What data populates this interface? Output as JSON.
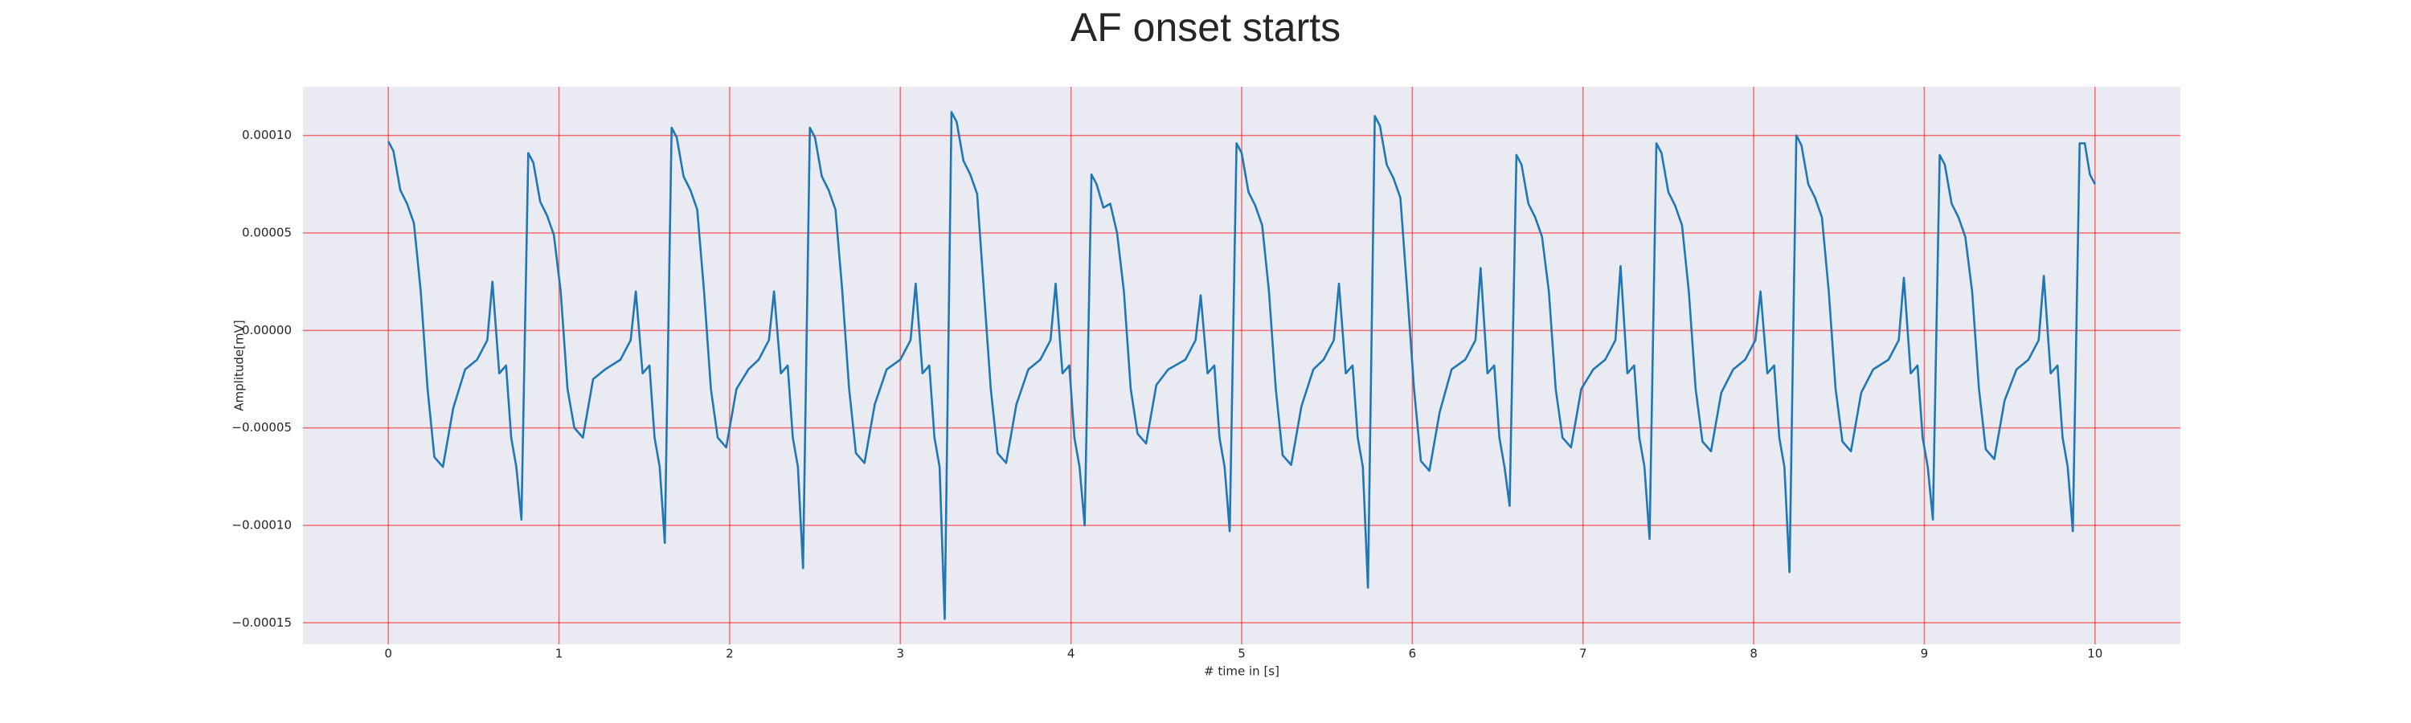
{
  "chart_data": {
    "type": "line",
    "title": "AF onset starts",
    "xlabel": "# time in [s]",
    "ylabel": "Amplitude[mV]",
    "color": "#1f77b4",
    "grid": true,
    "grid_color": "#ff0000",
    "background": "#eaeaf2",
    "xlim": [
      -0.5,
      10.5
    ],
    "xticks": [
      0,
      1,
      2,
      3,
      4,
      5,
      6,
      7,
      8,
      9,
      10
    ],
    "ylim": [
      -0.000161,
      0.000125
    ],
    "yticks": [
      {
        "value": -0.00015,
        "label": "−0.00015"
      },
      {
        "value": -0.0001,
        "label": "−0.00010"
      },
      {
        "value": -5e-05,
        "label": "−0.00005"
      },
      {
        "value": 0,
        "label": "0.00000"
      },
      {
        "value": 5e-05,
        "label": "0.00005"
      },
      {
        "value": 0.0001,
        "label": "0.00010"
      }
    ],
    "x": [
      0,
      0.03,
      0.07,
      0.11,
      0.15,
      0.19,
      0.23,
      0.27,
      0.32,
      0.38,
      0.45,
      0.52,
      0.58,
      0.61,
      0.65,
      0.69,
      0.72,
      0.75,
      0.78,
      0.82,
      0.85,
      0.89,
      0.93,
      0.97,
      1.01,
      1.05,
      1.09,
      1.14,
      1.2,
      1.27,
      1.36,
      1.42,
      1.45,
      1.49,
      1.53,
      1.56,
      1.59,
      1.62,
      1.66,
      1.69,
      1.73,
      1.77,
      1.81,
      1.85,
      1.89,
      1.93,
      1.98,
      2.04,
      2.11,
      2.17,
      2.23,
      2.26,
      2.3,
      2.34,
      2.37,
      2.4,
      2.43,
      2.47,
      2.5,
      2.54,
      2.58,
      2.62,
      2.66,
      2.7,
      2.74,
      2.79,
      2.85,
      2.92,
      3,
      3.06,
      3.09,
      3.13,
      3.17,
      3.2,
      3.23,
      3.26,
      3.3,
      3.33,
      3.37,
      3.41,
      3.45,
      3.49,
      3.53,
      3.57,
      3.62,
      3.68,
      3.75,
      3.82,
      3.88,
      3.91,
      3.95,
      3.99,
      4.02,
      4.05,
      4.08,
      4.12,
      4.15,
      4.19,
      4.23,
      4.27,
      4.31,
      4.35,
      4.39,
      4.44,
      4.5,
      4.57,
      4.67,
      4.73,
      4.76,
      4.8,
      4.84,
      4.87,
      4.9,
      4.93,
      4.97,
      5,
      5.04,
      5.08,
      5.12,
      5.16,
      5.2,
      5.24,
      5.29,
      5.35,
      5.42,
      5.48,
      5.54,
      5.57,
      5.61,
      5.65,
      5.68,
      5.71,
      5.74,
      5.78,
      5.81,
      5.85,
      5.89,
      5.93,
      5.97,
      6.01,
      6.05,
      6.1,
      6.16,
      6.23,
      6.31,
      6.37,
      6.4,
      6.44,
      6.48,
      6.51,
      6.54,
      6.57,
      6.61,
      6.64,
      6.68,
      6.72,
      6.76,
      6.8,
      6.84,
      6.88,
      6.93,
      6.99,
      7.06,
      7.13,
      7.19,
      7.22,
      7.26,
      7.3,
      7.33,
      7.36,
      7.39,
      7.43,
      7.46,
      7.5,
      7.54,
      7.58,
      7.62,
      7.66,
      7.7,
      7.75,
      7.81,
      7.88,
      7.95,
      8.01,
      8.04,
      8.08,
      8.12,
      8.15,
      8.18,
      8.21,
      8.25,
      8.28,
      8.32,
      8.36,
      8.4,
      8.44,
      8.48,
      8.52,
      8.57,
      8.63,
      8.7,
      8.79,
      8.85,
      8.88,
      8.92,
      8.96,
      8.99,
      9.02,
      9.05,
      9.09,
      9.12,
      9.16,
      9.2,
      9.24,
      9.28,
      9.32,
      9.36,
      9.41,
      9.47,
      9.54,
      9.61,
      9.67,
      9.7,
      9.74,
      9.78,
      9.81,
      9.84,
      9.87,
      9.91,
      9.94,
      9.97,
      10
    ],
    "values": [
      9.7e-05,
      9.2e-05,
      7.2e-05,
      6.5e-05,
      5.5e-05,
      2e-05,
      -3e-05,
      -6.5e-05,
      -7e-05,
      -4e-05,
      -2e-05,
      -1.5e-05,
      -5e-06,
      2.5e-05,
      -2.2e-05,
      -1.8e-05,
      -5.5e-05,
      -7e-05,
      -9.7e-05,
      9.1e-05,
      8.6e-05,
      6.6e-05,
      5.9e-05,
      4.9e-05,
      2e-05,
      -3e-05,
      -5e-05,
      -5.5e-05,
      -2.5e-05,
      -2e-05,
      -1.5e-05,
      -5e-06,
      2e-05,
      -2.2e-05,
      -1.8e-05,
      -5.5e-05,
      -7e-05,
      -0.000109,
      0.000104,
      9.9e-05,
      7.9e-05,
      7.2e-05,
      6.2e-05,
      2e-05,
      -3e-05,
      -5.5e-05,
      -6e-05,
      -3e-05,
      -2e-05,
      -1.5e-05,
      -5e-06,
      2e-05,
      -2.2e-05,
      -1.8e-05,
      -5.5e-05,
      -7e-05,
      -0.000122,
      0.000104,
      9.9e-05,
      7.9e-05,
      7.2e-05,
      6.2e-05,
      2e-05,
      -3e-05,
      -6.3e-05,
      -6.8e-05,
      -3.8e-05,
      -2e-05,
      -1.5e-05,
      -5e-06,
      2.4e-05,
      -2.2e-05,
      -1.8e-05,
      -5.5e-05,
      -7e-05,
      -0.000148,
      0.000112,
      0.000107,
      8.7e-05,
      8e-05,
      7e-05,
      2e-05,
      -3e-05,
      -6.3e-05,
      -6.8e-05,
      -3.8e-05,
      -2e-05,
      -1.5e-05,
      -5e-06,
      2.4e-05,
      -2.2e-05,
      -1.8e-05,
      -5.5e-05,
      -7e-05,
      -0.0001,
      8e-05,
      7.5e-05,
      6.3e-05,
      6.5e-05,
      5e-05,
      2e-05,
      -3e-05,
      -5.3e-05,
      -5.8e-05,
      -2.8e-05,
      -2e-05,
      -1.5e-05,
      -5e-06,
      1.8e-05,
      -2.2e-05,
      -1.8e-05,
      -5.5e-05,
      -7e-05,
      -0.000103,
      9.6e-05,
      9.1e-05,
      7.1e-05,
      6.4e-05,
      5.4e-05,
      2e-05,
      -3e-05,
      -6.4e-05,
      -6.9e-05,
      -3.9e-05,
      -2e-05,
      -1.5e-05,
      -5e-06,
      2.4e-05,
      -2.2e-05,
      -1.8e-05,
      -5.5e-05,
      -7e-05,
      -0.000132,
      0.00011,
      0.000105,
      8.5e-05,
      7.8e-05,
      6.8e-05,
      2e-05,
      -3e-05,
      -6.7e-05,
      -7.2e-05,
      -4.2e-05,
      -2e-05,
      -1.5e-05,
      -5e-06,
      3.2e-05,
      -2.2e-05,
      -1.8e-05,
      -5.5e-05,
      -7e-05,
      -9e-05,
      9e-05,
      8.5e-05,
      6.5e-05,
      5.8e-05,
      4.8e-05,
      2e-05,
      -3e-05,
      -5.5e-05,
      -6e-05,
      -3e-05,
      -2e-05,
      -1.5e-05,
      -5e-06,
      3.3e-05,
      -2.2e-05,
      -1.8e-05,
      -5.5e-05,
      -7e-05,
      -0.000107,
      9.6e-05,
      9.1e-05,
      7.1e-05,
      6.4e-05,
      5.4e-05,
      2e-05,
      -3e-05,
      -5.7e-05,
      -6.2e-05,
      -3.2e-05,
      -2e-05,
      -1.5e-05,
      -5e-06,
      2e-05,
      -2.2e-05,
      -1.8e-05,
      -5.5e-05,
      -7e-05,
      -0.000124,
      0.0001,
      9.5e-05,
      7.5e-05,
      6.8e-05,
      5.8e-05,
      2e-05,
      -3e-05,
      -5.7e-05,
      -6.2e-05,
      -3.2e-05,
      -2e-05,
      -1.5e-05,
      -5e-06,
      2.7e-05,
      -2.2e-05,
      -1.8e-05,
      -5.5e-05,
      -7e-05,
      -9.7e-05,
      9e-05,
      8.5e-05,
      6.5e-05,
      5.8e-05,
      4.8e-05,
      2e-05,
      -3e-05,
      -6.1e-05,
      -6.6e-05,
      -3.6e-05,
      -2e-05,
      -1.5e-05,
      -5e-06,
      2.8e-05,
      -2.2e-05,
      -1.8e-05,
      -5.5e-05,
      -7e-05,
      -0.000103,
      9.6e-05,
      9.6e-05,
      8e-05,
      7.5e-05
    ]
  }
}
